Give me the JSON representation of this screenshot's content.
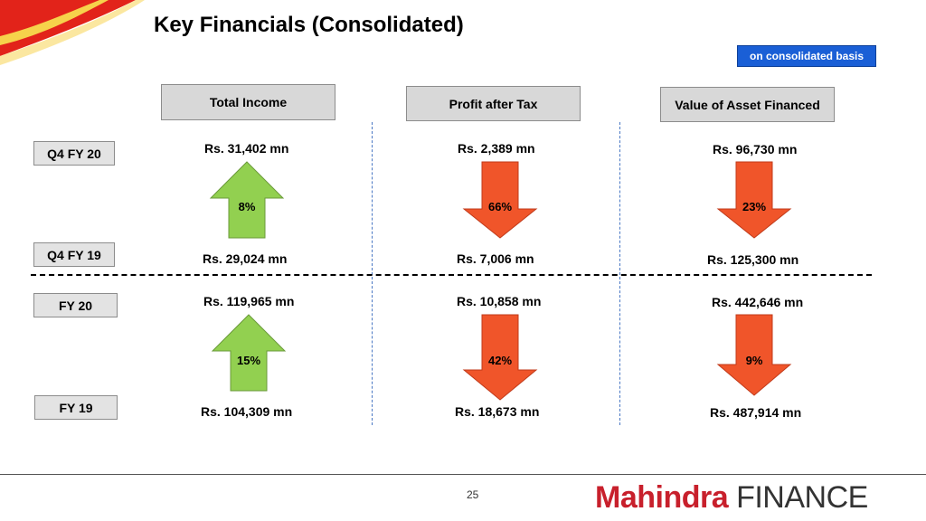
{
  "title": "Key Financials (Consolidated)",
  "basis_badge": "on consolidated basis",
  "columns": [
    "Total Income",
    "Profit after Tax",
    "Value of Asset Financed"
  ],
  "rows": {
    "q4_fy20": "Q4 FY 20",
    "q4_fy19": "Q4 FY 19",
    "fy20": "FY 20",
    "fy19": "FY 19"
  },
  "quarter": {
    "current": [
      "Rs. 31,402 mn",
      "Rs. 2,389 mn",
      "Rs. 96,730 mn"
    ],
    "previous": [
      "Rs. 29,024 mn",
      "Rs. 7,006 mn",
      "Rs. 125,300 mn"
    ],
    "change": [
      {
        "pct": "8%",
        "direction": "up",
        "color": "#92d050"
      },
      {
        "pct": "66%",
        "direction": "down",
        "color": "#f0552a"
      },
      {
        "pct": "23%",
        "direction": "down",
        "color": "#f0552a"
      }
    ]
  },
  "year": {
    "current": [
      "Rs. 119,965 mn",
      "Rs. 10,858 mn",
      "Rs. 442,646 mn"
    ],
    "previous": [
      "Rs. 104,309 mn",
      "Rs. 18,673 mn",
      "Rs. 487,914 mn"
    ],
    "change": [
      {
        "pct": "15%",
        "direction": "up",
        "color": "#92d050"
      },
      {
        "pct": "42%",
        "direction": "down",
        "color": "#f0552a"
      },
      {
        "pct": "9%",
        "direction": "down",
        "color": "#f0552a"
      }
    ]
  },
  "page_number": "25",
  "logo": {
    "brand": "Mahindra",
    "suffix": "FINANCE"
  },
  "colors": {
    "accent_red": "#e2231a",
    "badge_blue": "#1a5fd6"
  }
}
